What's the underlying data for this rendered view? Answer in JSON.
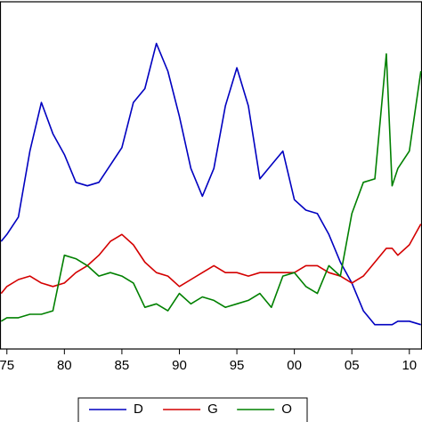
{
  "chart_data": {
    "type": "line",
    "x": [
      1974.5,
      1975,
      1976,
      1977,
      1978,
      1979,
      1980,
      1981,
      1982,
      1983,
      1984,
      1985,
      1986,
      1987,
      1988,
      1989,
      1990,
      1991,
      1992,
      1993,
      1994,
      1995,
      1996,
      1997,
      1998,
      1999,
      2000,
      2001,
      2002,
      2003,
      2004,
      2005,
      2006,
      2007,
      2008,
      2008.5,
      2009,
      2010,
      2011
    ],
    "series": [
      {
        "name": "D",
        "color": "#0000c0",
        "values": [
          31,
          33,
          38,
          57,
          71,
          62,
          56,
          48,
          47,
          48,
          53,
          58,
          71,
          75,
          88,
          80,
          67,
          52,
          44,
          52,
          70,
          81,
          70,
          49,
          53,
          57,
          43,
          40,
          39,
          33,
          25,
          19,
          11,
          7,
          7,
          7,
          8,
          8,
          7
        ]
      },
      {
        "name": "G",
        "color": "#d40000",
        "values": [
          16,
          18,
          20,
          21,
          19,
          18,
          19,
          22,
          24,
          27,
          31,
          33,
          30,
          25,
          22,
          21,
          18,
          20,
          22,
          24,
          22,
          22,
          21,
          22,
          22,
          22,
          22,
          24,
          24,
          22,
          21,
          19,
          21,
          25,
          29,
          29,
          27,
          30,
          36
        ]
      },
      {
        "name": "O",
        "color": "#008000",
        "values": [
          8,
          9,
          9,
          10,
          10,
          11,
          27,
          26,
          24,
          21,
          22,
          21,
          19,
          12,
          13,
          11,
          16,
          13,
          15,
          14,
          12,
          13,
          14,
          16,
          12,
          21,
          22,
          18,
          16,
          24,
          21,
          39,
          48,
          49,
          85,
          47,
          52,
          57,
          80
        ]
      }
    ],
    "xlim": [
      1974.4,
      2011.1
    ],
    "ylim": [
      0,
      100
    ],
    "xticks": [
      {
        "value": 1975,
        "label": "75"
      },
      {
        "value": 1980,
        "label": "80"
      },
      {
        "value": 1985,
        "label": "85"
      },
      {
        "value": 1990,
        "label": "90"
      },
      {
        "value": 1995,
        "label": "95"
      },
      {
        "value": 2000,
        "label": "00"
      },
      {
        "value": 2005,
        "label": "05"
      },
      {
        "value": 2010,
        "label": "10"
      }
    ],
    "legend": "bottom"
  }
}
